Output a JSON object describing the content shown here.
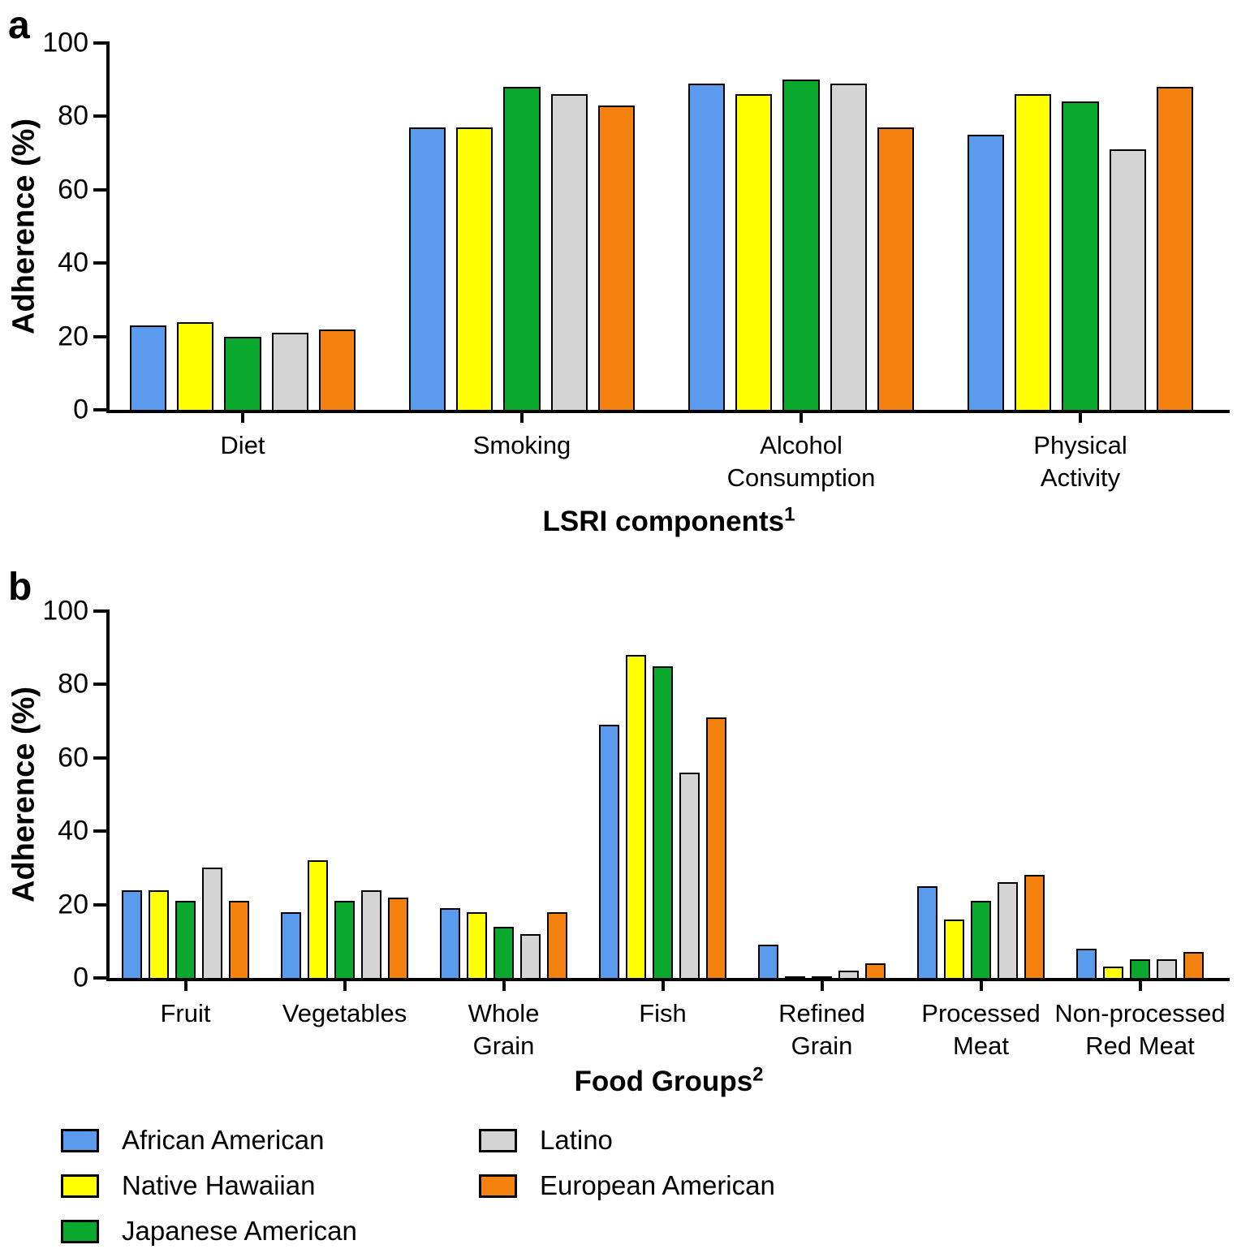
{
  "chart_data": [
    {
      "id": "a",
      "type": "bar",
      "panel_letter": "a",
      "ylabel": "Adherence (%)",
      "xlabel": "LSRI components",
      "xlabel_sup": "1",
      "ylim": [
        0,
        100
      ],
      "yticks": [
        0,
        20,
        40,
        60,
        80,
        100
      ],
      "grid": false,
      "legend_position": "bottom-shared",
      "categories": [
        "Diet",
        "Smoking",
        "Alcohol\nConsumption",
        "Physical\nActivity"
      ],
      "series": [
        {
          "name": "African American",
          "color": "#5B9BEE",
          "values": [
            23,
            77,
            89,
            75
          ]
        },
        {
          "name": "Native Hawaiian",
          "color": "#FFFF00",
          "values": [
            24,
            77,
            86,
            86
          ]
        },
        {
          "name": "Japanese American",
          "color": "#0AA82D",
          "values": [
            20,
            88,
            90,
            84
          ]
        },
        {
          "name": "Latino",
          "color": "#D4D4D4",
          "values": [
            21,
            86,
            89,
            71
          ]
        },
        {
          "name": "European American",
          "color": "#F5820F",
          "values": [
            22,
            83,
            77,
            88
          ]
        }
      ]
    },
    {
      "id": "b",
      "type": "bar",
      "panel_letter": "b",
      "ylabel": "Adherence (%)",
      "xlabel": "Food Groups",
      "xlabel_sup": "2",
      "ylim": [
        0,
        100
      ],
      "yticks": [
        0,
        20,
        40,
        60,
        80,
        100
      ],
      "grid": false,
      "legend_position": "bottom-shared",
      "categories": [
        "Fruit",
        "Vegetables",
        "Whole\nGrain",
        "Fish",
        "Refined\nGrain",
        "Processed\nMeat",
        "Non-processed\nRed Meat"
      ],
      "series": [
        {
          "name": "African American",
          "color": "#5B9BEE",
          "values": [
            24,
            18,
            19,
            69,
            9,
            25,
            8
          ]
        },
        {
          "name": "Native Hawaiian",
          "color": "#FFFF00",
          "values": [
            24,
            32,
            18,
            88,
            0.5,
            16,
            3
          ]
        },
        {
          "name": "Japanese American",
          "color": "#0AA82D",
          "values": [
            21,
            21,
            14,
            85,
            0.5,
            21,
            5
          ]
        },
        {
          "name": "Latino",
          "color": "#D4D4D4",
          "values": [
            30,
            24,
            12,
            56,
            2,
            26,
            5
          ]
        },
        {
          "name": "European American",
          "color": "#F5820F",
          "values": [
            21,
            22,
            18,
            71,
            4,
            28,
            7
          ]
        }
      ]
    }
  ],
  "legend": {
    "columns": [
      [
        "African American",
        "Native Hawaiian",
        "Japanese American"
      ],
      [
        "Latino",
        "European American"
      ]
    ]
  }
}
